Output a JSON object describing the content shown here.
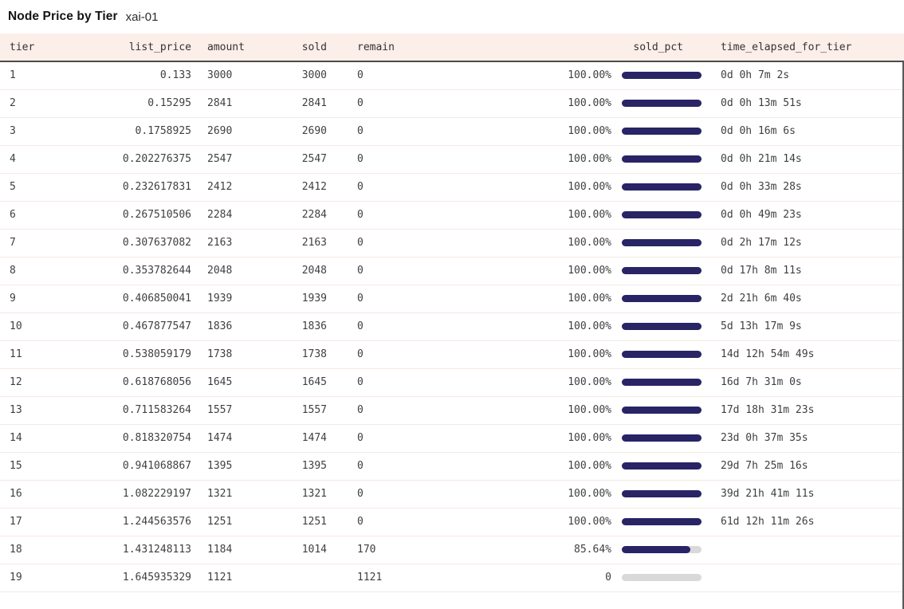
{
  "title": "Node Price by Tier",
  "subtitle": "xai-01",
  "colors": {
    "header_bg": "#fceee8",
    "header_border": "#4c4a47",
    "row_border": "#f5e8e3",
    "bar_fill": "#282466",
    "bar_track": "#d9d9d9",
    "scrollbar": "#595959"
  },
  "table": {
    "columns": [
      "tier",
      "list_price",
      "amount",
      "sold",
      "remain",
      "sold_pct",
      "time_elapsed_for_tier"
    ],
    "rows": [
      {
        "tier": "1",
        "list_price": "0.133",
        "amount": "3000",
        "sold": "3000",
        "remain": "0",
        "pct_label": "100.00%",
        "pct_value": 100,
        "time": "0d 0h 7m 2s"
      },
      {
        "tier": "2",
        "list_price": "0.15295",
        "amount": "2841",
        "sold": "2841",
        "remain": "0",
        "pct_label": "100.00%",
        "pct_value": 100,
        "time": "0d 0h 13m 51s"
      },
      {
        "tier": "3",
        "list_price": "0.1758925",
        "amount": "2690",
        "sold": "2690",
        "remain": "0",
        "pct_label": "100.00%",
        "pct_value": 100,
        "time": "0d 0h 16m 6s"
      },
      {
        "tier": "4",
        "list_price": "0.202276375",
        "amount": "2547",
        "sold": "2547",
        "remain": "0",
        "pct_label": "100.00%",
        "pct_value": 100,
        "time": "0d 0h 21m 14s"
      },
      {
        "tier": "5",
        "list_price": "0.232617831",
        "amount": "2412",
        "sold": "2412",
        "remain": "0",
        "pct_label": "100.00%",
        "pct_value": 100,
        "time": "0d 0h 33m 28s"
      },
      {
        "tier": "6",
        "list_price": "0.267510506",
        "amount": "2284",
        "sold": "2284",
        "remain": "0",
        "pct_label": "100.00%",
        "pct_value": 100,
        "time": "0d 0h 49m 23s"
      },
      {
        "tier": "7",
        "list_price": "0.307637082",
        "amount": "2163",
        "sold": "2163",
        "remain": "0",
        "pct_label": "100.00%",
        "pct_value": 100,
        "time": "0d 2h 17m 12s"
      },
      {
        "tier": "8",
        "list_price": "0.353782644",
        "amount": "2048",
        "sold": "2048",
        "remain": "0",
        "pct_label": "100.00%",
        "pct_value": 100,
        "time": "0d 17h 8m 11s"
      },
      {
        "tier": "9",
        "list_price": "0.406850041",
        "amount": "1939",
        "sold": "1939",
        "remain": "0",
        "pct_label": "100.00%",
        "pct_value": 100,
        "time": "2d 21h 6m 40s"
      },
      {
        "tier": "10",
        "list_price": "0.467877547",
        "amount": "1836",
        "sold": "1836",
        "remain": "0",
        "pct_label": "100.00%",
        "pct_value": 100,
        "time": "5d 13h 17m 9s"
      },
      {
        "tier": "11",
        "list_price": "0.538059179",
        "amount": "1738",
        "sold": "1738",
        "remain": "0",
        "pct_label": "100.00%",
        "pct_value": 100,
        "time": "14d 12h 54m 49s"
      },
      {
        "tier": "12",
        "list_price": "0.618768056",
        "amount": "1645",
        "sold": "1645",
        "remain": "0",
        "pct_label": "100.00%",
        "pct_value": 100,
        "time": "16d 7h 31m 0s"
      },
      {
        "tier": "13",
        "list_price": "0.711583264",
        "amount": "1557",
        "sold": "1557",
        "remain": "0",
        "pct_label": "100.00%",
        "pct_value": 100,
        "time": "17d 18h 31m 23s"
      },
      {
        "tier": "14",
        "list_price": "0.818320754",
        "amount": "1474",
        "sold": "1474",
        "remain": "0",
        "pct_label": "100.00%",
        "pct_value": 100,
        "time": "23d 0h 37m 35s"
      },
      {
        "tier": "15",
        "list_price": "0.941068867",
        "amount": "1395",
        "sold": "1395",
        "remain": "0",
        "pct_label": "100.00%",
        "pct_value": 100,
        "time": "29d 7h 25m 16s"
      },
      {
        "tier": "16",
        "list_price": "1.082229197",
        "amount": "1321",
        "sold": "1321",
        "remain": "0",
        "pct_label": "100.00%",
        "pct_value": 100,
        "time": "39d 21h 41m 11s"
      },
      {
        "tier": "17",
        "list_price": "1.244563576",
        "amount": "1251",
        "sold": "1251",
        "remain": "0",
        "pct_label": "100.00%",
        "pct_value": 100,
        "time": "61d 12h 11m 26s"
      },
      {
        "tier": "18",
        "list_price": "1.431248113",
        "amount": "1184",
        "sold": "1014",
        "remain": "170",
        "pct_label": "85.64%",
        "pct_value": 85.64,
        "time": ""
      },
      {
        "tier": "19",
        "list_price": "1.645935329",
        "amount": "1121",
        "sold": "",
        "remain": "1121",
        "pct_label": "0",
        "pct_value": 0,
        "time": ""
      }
    ]
  }
}
